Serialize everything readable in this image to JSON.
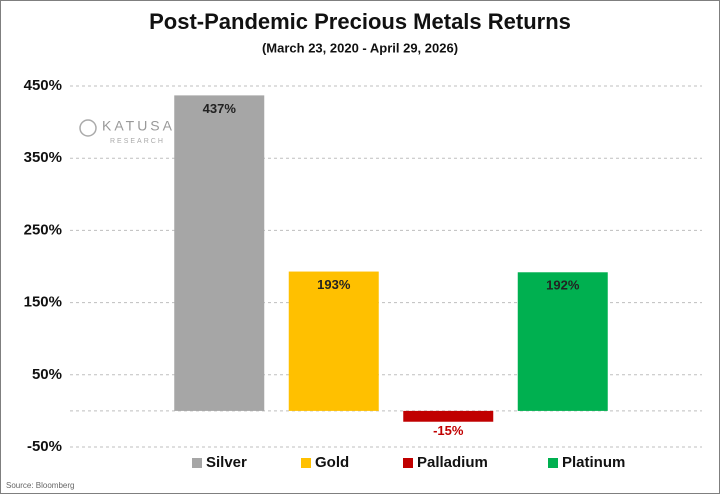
{
  "chart_data": {
    "type": "bar",
    "title": "Post-Pandemic Precious Metals Returns",
    "subtitle": "(March 23, 2020 - April 29, 2026)",
    "categories": [
      "Silver",
      "Gold",
      "Palladium",
      "Platinum"
    ],
    "values": [
      437,
      193,
      -15,
      192
    ],
    "value_labels": [
      "437%",
      "193%",
      "-15%",
      "192%"
    ],
    "colors": [
      "#a6a6a6",
      "#ffc000",
      "#c00000",
      "#00b050"
    ],
    "ylim": [
      -50,
      450
    ],
    "yticks": [
      {
        "value": 450,
        "label": "450%"
      },
      {
        "value": 350,
        "label": "350%"
      },
      {
        "value": 250,
        "label": "250%"
      },
      {
        "value": 150,
        "label": "150%"
      },
      {
        "value": 50,
        "label": "50%"
      },
      {
        "value": -50,
        "label": "-50%"
      }
    ],
    "grid": true,
    "legend": "bottom",
    "logo": [
      "KATUSA",
      "RESEARCH"
    ],
    "source": "Source: Bloomberg"
  }
}
